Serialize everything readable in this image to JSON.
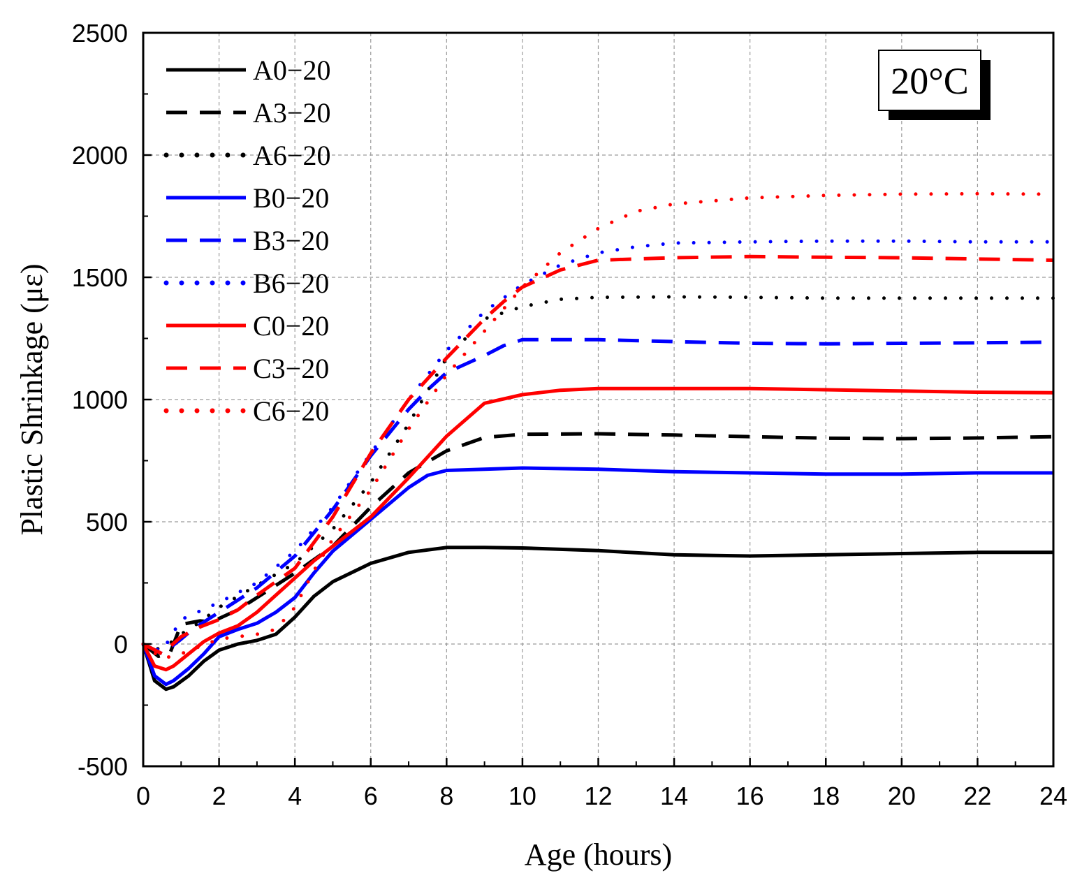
{
  "chart_data": {
    "type": "line",
    "title": "",
    "xlabel": "Age (hours)",
    "ylabel": "Plastic Shrinkage (με)",
    "xlim": [
      0,
      24
    ],
    "ylim": [
      -500,
      2500
    ],
    "xticks": [
      "0",
      "2",
      "4",
      "6",
      "8",
      "10",
      "12",
      "14",
      "16",
      "18",
      "20",
      "22",
      "24"
    ],
    "yticks": [
      "-500",
      "0",
      "500",
      "1000",
      "1500",
      "2000",
      "2500"
    ],
    "grid": true,
    "legend_position": "top-left",
    "annotation": "20°C",
    "series": [
      {
        "name": "A0−20",
        "color": "#000000",
        "dash": "solid",
        "x": [
          0,
          0.3,
          0.6,
          0.8,
          1.2,
          1.6,
          2,
          2.5,
          3,
          3.5,
          4,
          4.5,
          5,
          6,
          7,
          8,
          9,
          10,
          12,
          14,
          16,
          18,
          20,
          22,
          24
        ],
        "y": [
          0,
          -150,
          -185,
          -175,
          -130,
          -70,
          -25,
          0,
          15,
          40,
          110,
          195,
          255,
          330,
          375,
          395,
          395,
          393,
          382,
          365,
          360,
          365,
          370,
          375,
          375
        ]
      },
      {
        "name": "A3−20",
        "color": "#000000",
        "dash": "dash",
        "x": [
          0,
          0.4,
          0.7,
          1,
          1.5,
          1.8,
          2.5,
          3,
          3.5,
          4,
          5,
          6,
          7,
          8,
          9,
          10,
          12,
          14,
          16,
          18,
          20,
          22,
          24
        ],
        "y": [
          0,
          -50,
          -40,
          80,
          95,
          90,
          140,
          190,
          240,
          290,
          400,
          560,
          700,
          790,
          845,
          858,
          860,
          855,
          848,
          842,
          840,
          843,
          848
        ]
      },
      {
        "name": "A6−20",
        "color": "#000000",
        "dash": "dot",
        "x": [
          0,
          0.4,
          0.6,
          1,
          1.5,
          2,
          3,
          4,
          5,
          6,
          7,
          8,
          9,
          10,
          11,
          12,
          14,
          16,
          18,
          20,
          22,
          24
        ],
        "y": [
          0,
          -20,
          -10,
          40,
          90,
          150,
          240,
          330,
          470,
          660,
          900,
          1170,
          1330,
          1380,
          1410,
          1418,
          1420,
          1418,
          1415,
          1415,
          1415,
          1415
        ]
      },
      {
        "name": "B0−20",
        "color": "#0000ff",
        "dash": "solid",
        "x": [
          0,
          0.3,
          0.6,
          0.8,
          1.2,
          1.6,
          2,
          2.5,
          3,
          3.5,
          4,
          4.5,
          5,
          6,
          7,
          7.5,
          8,
          9,
          10,
          12,
          14,
          16,
          18,
          20,
          22,
          24
        ],
        "y": [
          0,
          -130,
          -165,
          -150,
          -100,
          -40,
          30,
          60,
          85,
          130,
          190,
          290,
          380,
          510,
          640,
          690,
          710,
          715,
          720,
          715,
          705,
          700,
          695,
          695,
          700,
          700
        ]
      },
      {
        "name": "B3−20",
        "color": "#0000ff",
        "dash": "dash",
        "x": [
          0,
          0.5,
          1,
          1.3,
          2,
          3,
          4,
          5,
          6,
          7,
          7.5,
          8,
          9,
          9.5,
          10,
          12,
          14,
          16,
          18,
          20,
          22,
          24
        ],
        "y": [
          0,
          -40,
          20,
          60,
          130,
          230,
          360,
          550,
          770,
          960,
          1040,
          1110,
          1180,
          1220,
          1245,
          1245,
          1237,
          1230,
          1228,
          1230,
          1232,
          1235
        ]
      },
      {
        "name": "B6−20",
        "color": "#0000ff",
        "dash": "dot",
        "x": [
          0,
          0.5,
          1,
          2,
          3,
          4,
          5,
          6,
          7,
          8,
          9,
          10,
          11,
          12,
          13,
          14,
          16,
          18,
          20,
          22,
          24
        ],
        "y": [
          0,
          -30,
          100,
          170,
          250,
          380,
          560,
          780,
          1000,
          1200,
          1360,
          1470,
          1550,
          1600,
          1625,
          1640,
          1645,
          1648,
          1648,
          1645,
          1645
        ]
      },
      {
        "name": "C0−20",
        "color": "#ff0000",
        "dash": "solid",
        "x": [
          0,
          0.3,
          0.6,
          0.8,
          1.2,
          1.6,
          2,
          2.5,
          3,
          3.5,
          4,
          4.5,
          5,
          6,
          7,
          8,
          9,
          10,
          11,
          12,
          14,
          16,
          18,
          20,
          22,
          24
        ],
        "y": [
          0,
          -90,
          -105,
          -90,
          -40,
          10,
          45,
          75,
          130,
          200,
          270,
          340,
          400,
          520,
          680,
          850,
          985,
          1020,
          1038,
          1045,
          1045,
          1045,
          1040,
          1035,
          1030,
          1028
        ]
      },
      {
        "name": "C3−20",
        "color": "#ff0000",
        "dash": "dash",
        "x": [
          0,
          0.5,
          1,
          1.5,
          2,
          2.5,
          3,
          4,
          5,
          6,
          7,
          8,
          9,
          9.5,
          10,
          11,
          12,
          14,
          16,
          18,
          20,
          22,
          24
        ],
        "y": [
          0,
          -40,
          30,
          70,
          100,
          140,
          200,
          310,
          520,
          780,
          1000,
          1170,
          1330,
          1400,
          1460,
          1530,
          1570,
          1580,
          1585,
          1582,
          1580,
          1575,
          1570
        ]
      },
      {
        "name": "C6−20",
        "color": "#ff0000",
        "dash": "dot",
        "x": [
          0,
          0.5,
          1,
          2,
          3,
          3.5,
          4,
          4.5,
          5,
          6,
          7,
          8,
          9,
          10,
          11,
          12,
          13,
          14,
          16,
          18,
          20,
          22,
          24
        ],
        "y": [
          0,
          -60,
          -40,
          20,
          40,
          60,
          150,
          300,
          430,
          630,
          880,
          1100,
          1280,
          1460,
          1600,
          1700,
          1770,
          1800,
          1825,
          1835,
          1840,
          1842,
          1840
        ]
      }
    ]
  }
}
